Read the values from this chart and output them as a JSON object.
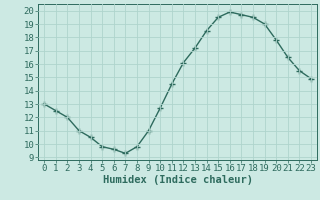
{
  "x": [
    0,
    1,
    2,
    3,
    4,
    5,
    6,
    7,
    8,
    9,
    10,
    11,
    12,
    13,
    14,
    15,
    16,
    17,
    18,
    19,
    20,
    21,
    22,
    23
  ],
  "y": [
    13,
    12.5,
    12,
    11,
    10.5,
    9.8,
    9.6,
    9.3,
    9.8,
    11,
    12.7,
    14.5,
    16.1,
    17.2,
    18.5,
    19.5,
    19.9,
    19.7,
    19.5,
    19.0,
    17.8,
    16.5,
    15.5,
    14.9
  ],
  "line_color": "#2e6b5e",
  "marker": "+",
  "marker_size": 4,
  "marker_lw": 1.0,
  "line_width": 1.0,
  "bg_color": "#cce9e3",
  "grid_color": "#afd4cd",
  "xlim": [
    -0.5,
    23.5
  ],
  "ylim": [
    8.8,
    20.5
  ],
  "yticks": [
    9,
    10,
    11,
    12,
    13,
    14,
    15,
    16,
    17,
    18,
    19,
    20
  ],
  "xticks": [
    0,
    1,
    2,
    3,
    4,
    5,
    6,
    7,
    8,
    9,
    10,
    11,
    12,
    13,
    14,
    15,
    16,
    17,
    18,
    19,
    20,
    21,
    22,
    23
  ],
  "xlabel": "Humidex (Indice chaleur)",
  "xlabel_fontsize": 7.5,
  "tick_fontsize": 6.5,
  "axis_color": "#2e6b5e",
  "spine_color": "#2e6b5e"
}
